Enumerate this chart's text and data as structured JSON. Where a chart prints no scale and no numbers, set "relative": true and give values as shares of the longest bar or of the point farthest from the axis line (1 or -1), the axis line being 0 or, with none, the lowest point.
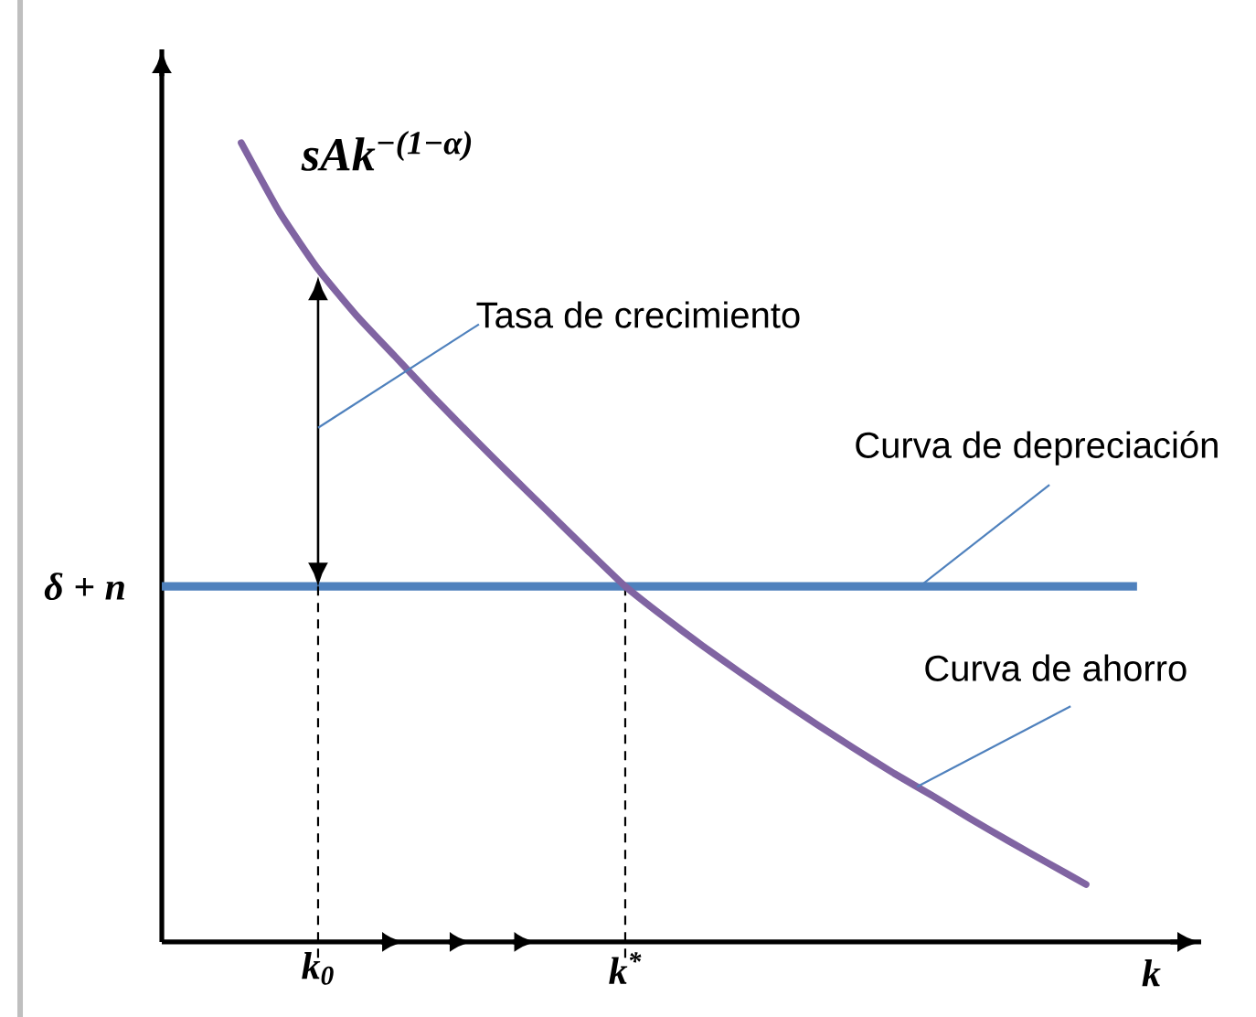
{
  "chart_data": {
    "type": "line",
    "relative": true,
    "categories": [
      null,
      null,
      "k$_{0}$",
      null,
      null,
      null,
      null,
      null,
      null,
      null,
      "k$^{*}$",
      null,
      null,
      null,
      null,
      null,
      null,
      null,
      null,
      null,
      null,
      null,
      null
    ],
    "series": [
      {
        "name": "sAk$^{−(1−α)}$",
        "color": "#8064a2",
        "values": [
          1,
          0.913,
          0.842,
          0.784,
          0.733,
          0.682,
          0.633,
          0.585,
          0.538,
          0.491,
          0.445,
          0.407,
          0.371,
          0.337,
          0.304,
          0.272,
          0.241,
          0.211,
          0.183,
          0.154,
          0.126,
          0.099,
          0.072
        ]
      }
    ],
    "ref_lines": [
      {
        "axis": "y",
        "value": 0.445,
        "label": "δ + n",
        "color": "#4f81bd"
      },
      {
        "axis": "x",
        "value": "k$_{0}$",
        "color": "#000000",
        "line_style": "dashed"
      },
      {
        "axis": "x",
        "value": "k$^{*}$",
        "color": "#000000",
        "line_style": "dashed"
      }
    ],
    "xlabel": "k",
    "annotations": [
      "Tasa de crecimiento",
      "Curva de depreciación",
      "Curva de ahorro"
    ]
  }
}
